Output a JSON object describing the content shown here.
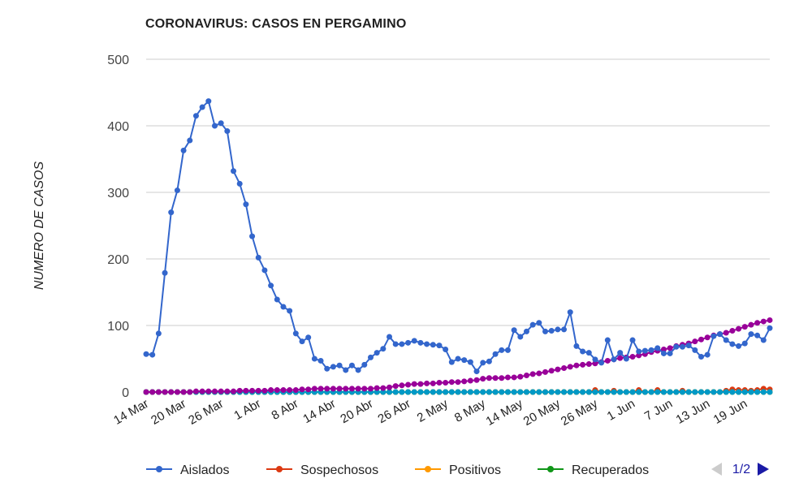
{
  "chart_data": {
    "type": "line",
    "title": "CORONAVIRUS: CASOS EN PERGAMINO",
    "xlabel": "",
    "ylabel": "NUMERO DE CASOS",
    "ylim": [
      0,
      500
    ],
    "yticks": [
      0,
      100,
      200,
      300,
      400,
      500
    ],
    "grid": true,
    "legend_position": "bottom",
    "x_start": "14 Mar",
    "x_tick_labels": [
      "14 Mar",
      "20 Mar",
      "26 Mar",
      "1 Abr",
      "8 Abr",
      "14 Abr",
      "20 Abr",
      "26 Abr",
      "2 May",
      "8 May",
      "14 May",
      "20 May",
      "26 May",
      "1 Jun",
      "7 Jun",
      "13 Jun",
      "19 Jun"
    ],
    "series": [
      {
        "name": "Aislados",
        "color": "#3366cc",
        "values": [
          57,
          56,
          88,
          179,
          270,
          303,
          363,
          378,
          415,
          428,
          437,
          400,
          404,
          392,
          332,
          313,
          282,
          234,
          202,
          183,
          160,
          139,
          128,
          122,
          88,
          76,
          82,
          50,
          47,
          35,
          38,
          40,
          33,
          40,
          33,
          41,
          52,
          59,
          65,
          83,
          72,
          72,
          74,
          77,
          74,
          72,
          71,
          70,
          64,
          45,
          50,
          48,
          45,
          31,
          44,
          46,
          57,
          63,
          63,
          93,
          83,
          91,
          101,
          104,
          91,
          92,
          94,
          94,
          120,
          69,
          61,
          59,
          49,
          44,
          78,
          49,
          59,
          50,
          78,
          61,
          62,
          63,
          66,
          58,
          58,
          68,
          68,
          70,
          63,
          53,
          56,
          84,
          87,
          78,
          72,
          69,
          73,
          87,
          85,
          78,
          96
        ]
      },
      {
        "name": "Sospechosos",
        "color": "#dc3912",
        "values": [
          0,
          0,
          0,
          0,
          0,
          0,
          0,
          0,
          0,
          0,
          0,
          0,
          0,
          0,
          0,
          0,
          0,
          0,
          0,
          0,
          0,
          0,
          0,
          0,
          0,
          0,
          0,
          0,
          0,
          0,
          0,
          0,
          0,
          0,
          0,
          0,
          0,
          0,
          0,
          0,
          0,
          0,
          0,
          0,
          0,
          0,
          0,
          0,
          0,
          0,
          0,
          0,
          0,
          0,
          0,
          0,
          0,
          0,
          0,
          0,
          0,
          0,
          0,
          0,
          0,
          0,
          0,
          0,
          0,
          0,
          0,
          0,
          3,
          0,
          0,
          2,
          0,
          0,
          0,
          3,
          0,
          0,
          3,
          0,
          0,
          0,
          2,
          0,
          0,
          0,
          0,
          0,
          0,
          2,
          4,
          3,
          3,
          2,
          3,
          5,
          4
        ]
      },
      {
        "name": "Positivos",
        "color": "#ff9900",
        "values": [
          0,
          0,
          0,
          0,
          0,
          0,
          0,
          0,
          0,
          0,
          0,
          0,
          0,
          0,
          0,
          0,
          0,
          0,
          0,
          0,
          0,
          0,
          0,
          0,
          0,
          0,
          0,
          0,
          0,
          0,
          0,
          0,
          0,
          0,
          0,
          0,
          0,
          0,
          0,
          0,
          0,
          0,
          0,
          0,
          0,
          0,
          0,
          0,
          0,
          0,
          0,
          0,
          0,
          0,
          0,
          0,
          0,
          0,
          0,
          0,
          0,
          0,
          0,
          0,
          0,
          0,
          0,
          0,
          0,
          0,
          0,
          0,
          0,
          0,
          0,
          0,
          0,
          0,
          0,
          0,
          0,
          0,
          0,
          0,
          0,
          0,
          0,
          0,
          0,
          0,
          0,
          0,
          0,
          0,
          0,
          0,
          0,
          0,
          0,
          0,
          0
        ]
      },
      {
        "name": "Recuperados",
        "color": "#109618",
        "values": [
          0,
          0,
          0,
          0,
          0,
          0,
          0,
          0,
          0,
          0,
          0,
          0,
          0,
          0,
          0,
          0,
          0,
          0,
          0,
          0,
          0,
          0,
          0,
          0,
          0,
          0,
          0,
          0,
          0,
          0,
          0,
          0,
          0,
          0,
          0,
          0,
          0,
          0,
          0,
          0,
          0,
          0,
          0,
          0,
          0,
          0,
          0,
          0,
          0,
          0,
          0,
          0,
          0,
          0,
          0,
          0,
          0,
          0,
          0,
          0,
          0,
          0,
          0,
          0,
          0,
          0,
          0,
          0,
          0,
          0,
          0,
          0,
          0,
          0,
          0,
          0,
          0,
          0,
          0,
          0,
          0,
          0,
          0,
          0,
          0,
          0,
          0,
          0,
          0,
          0,
          0,
          0,
          0,
          0,
          0,
          0,
          0,
          0,
          0,
          0,
          0
        ]
      },
      {
        "color": "#990099",
        "values": [
          0,
          0,
          0,
          0,
          0,
          0,
          0,
          0,
          1,
          1,
          1,
          1,
          1,
          1,
          1,
          2,
          2,
          2,
          2,
          2,
          3,
          3,
          3,
          3,
          3,
          4,
          4,
          5,
          5,
          5,
          5,
          5,
          5,
          5,
          5,
          5,
          5,
          6,
          6,
          7,
          9,
          10,
          11,
          12,
          12,
          13,
          13,
          14,
          14,
          15,
          15,
          16,
          17,
          18,
          20,
          21,
          21,
          21,
          22,
          22,
          23,
          25,
          27,
          28,
          30,
          32,
          34,
          36,
          38,
          40,
          41,
          42,
          43,
          45,
          47,
          49,
          51,
          52,
          53,
          55,
          57,
          60,
          62,
          64,
          66,
          69,
          71,
          73,
          76,
          79,
          82,
          85,
          87,
          89,
          92,
          95,
          98,
          101,
          104,
          106,
          108
        ]
      },
      {
        "color": "#0099c6",
        "values": [
          0,
          0,
          0,
          0,
          0,
          0,
          0,
          0,
          0,
          0,
          0,
          0,
          0,
          0,
          0,
          0,
          0,
          0,
          0,
          0,
          0,
          0,
          0,
          0,
          0,
          0,
          0,
          0,
          0,
          0,
          0,
          0,
          0,
          0,
          0,
          0,
          0,
          0,
          0,
          0,
          0,
          0,
          0,
          0,
          0,
          0,
          0,
          0,
          0,
          0,
          0,
          0,
          0,
          0,
          0,
          0,
          0,
          0,
          0,
          0,
          0,
          0,
          0,
          0,
          0,
          0,
          0,
          0,
          0,
          0,
          0,
          0,
          0,
          0,
          0,
          0,
          0,
          0,
          0,
          0,
          0,
          0,
          0,
          0,
          0,
          0,
          0,
          0,
          0,
          0,
          0,
          0,
          0,
          0,
          0,
          0,
          0,
          0,
          0,
          0,
          0
        ]
      }
    ]
  },
  "legend": {
    "items": [
      {
        "label": "Aislados",
        "color": "#3366cc"
      },
      {
        "label": "Sospechosos",
        "color": "#dc3912"
      },
      {
        "label": "Positivos",
        "color": "#ff9900"
      },
      {
        "label": "Recuperados",
        "color": "#109618"
      }
    ],
    "pager": {
      "text": "1/2",
      "prev_icon": "triangle-left-icon",
      "next_icon": "triangle-right-icon",
      "active_color": "#1a1aa6",
      "inactive_color": "#cccccc"
    }
  }
}
